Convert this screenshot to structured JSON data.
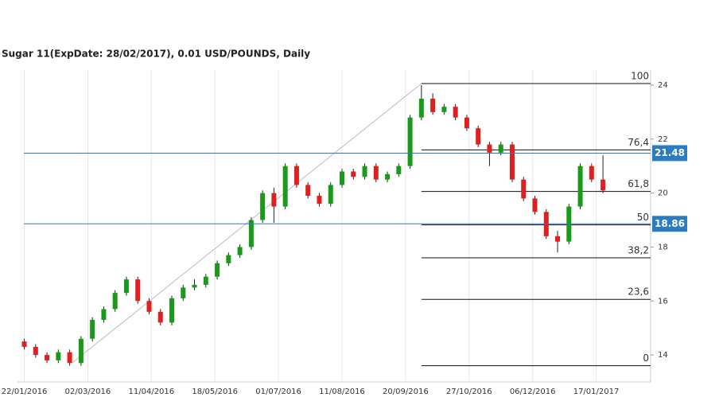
{
  "chart_data": {
    "type": "candlestick",
    "title": "Sugar 11(ExpDate: 28/02/2017), 0.01 USD/POUNDS, Daily",
    "x": [
      0,
      5,
      10,
      15,
      20,
      25,
      30,
      35,
      40,
      45,
      50,
      55,
      60,
      65,
      70,
      75,
      80,
      85,
      90,
      95,
      100,
      105,
      110,
      115,
      120,
      125,
      130,
      135,
      140,
      145,
      150,
      155,
      160,
      165,
      170,
      175,
      180,
      185,
      190,
      195,
      200,
      205,
      210,
      215,
      220,
      225,
      230,
      235,
      240,
      245,
      250,
      255
    ],
    "open": [
      14.5,
      14.3,
      14.0,
      13.8,
      14.1,
      13.7,
      14.6,
      15.3,
      15.7,
      16.3,
      16.8,
      16.0,
      15.6,
      15.2,
      16.1,
      16.5,
      16.6,
      16.9,
      17.4,
      17.7,
      18.0,
      19.0,
      20.0,
      19.5,
      21.0,
      20.3,
      19.9,
      19.6,
      20.3,
      20.8,
      20.6,
      21.0,
      20.5,
      20.7,
      21.0,
      22.8,
      23.5,
      23.0,
      23.2,
      22.8,
      22.4,
      21.8,
      21.5,
      21.8,
      20.5,
      19.8,
      19.3,
      18.4,
      18.2,
      19.5,
      21.0,
      20.5
    ],
    "high": [
      14.6,
      14.4,
      14.1,
      14.2,
      14.2,
      14.7,
      15.4,
      15.8,
      16.4,
      16.9,
      16.9,
      16.1,
      15.7,
      16.2,
      16.6,
      16.8,
      17.0,
      17.5,
      17.8,
      18.1,
      19.1,
      20.1,
      20.2,
      21.1,
      21.1,
      20.4,
      20.0,
      20.4,
      20.9,
      20.9,
      21.1,
      21.1,
      20.8,
      21.1,
      22.9,
      24.0,
      23.7,
      23.3,
      23.3,
      22.9,
      22.5,
      21.9,
      21.9,
      21.9,
      20.6,
      19.9,
      19.4,
      18.6,
      19.6,
      21.1,
      21.1,
      21.4
    ],
    "low": [
      14.2,
      13.9,
      13.7,
      13.7,
      13.6,
      13.6,
      14.5,
      15.2,
      15.6,
      16.2,
      15.9,
      15.5,
      15.1,
      15.1,
      16.0,
      16.4,
      16.5,
      16.8,
      17.3,
      17.6,
      17.9,
      18.9,
      18.9,
      19.4,
      20.2,
      19.8,
      19.5,
      19.5,
      20.2,
      20.5,
      20.5,
      20.4,
      20.4,
      20.6,
      20.9,
      22.7,
      22.9,
      22.9,
      22.7,
      22.3,
      21.7,
      21.0,
      21.4,
      20.4,
      19.7,
      19.2,
      18.3,
      17.8,
      18.1,
      19.4,
      20.4,
      20.0
    ],
    "close": [
      14.3,
      14.0,
      13.8,
      14.1,
      13.7,
      14.6,
      15.3,
      15.7,
      16.3,
      16.8,
      16.0,
      15.6,
      15.2,
      16.1,
      16.5,
      16.6,
      16.9,
      17.4,
      17.7,
      18.0,
      19.0,
      20.0,
      19.5,
      21.0,
      20.3,
      19.9,
      19.6,
      20.3,
      20.8,
      20.6,
      21.0,
      20.5,
      20.7,
      21.0,
      22.8,
      23.5,
      23.0,
      23.2,
      22.8,
      22.4,
      21.8,
      21.5,
      21.8,
      20.5,
      19.8,
      19.3,
      18.4,
      18.2,
      19.5,
      21.0,
      20.5,
      20.1
    ],
    "up_color": "#1a9a1a",
    "down_color": "#e02020",
    "xlim": [
      -3,
      276
    ],
    "xticks": [
      {
        "value": 0,
        "label": "22/01/2016"
      },
      {
        "value": 28,
        "label": "02/03/2016"
      },
      {
        "value": 56,
        "label": "11/04/2016"
      },
      {
        "value": 84,
        "label": "18/05/2016"
      },
      {
        "value": 112,
        "label": "01/07/2016"
      },
      {
        "value": 140,
        "label": "11/08/2016"
      },
      {
        "value": 168,
        "label": "20/09/2016"
      },
      {
        "value": 196,
        "label": "27/10/2016"
      },
      {
        "value": 224,
        "label": "06/12/2016"
      },
      {
        "value": 252,
        "label": "17/01/2017"
      }
    ],
    "ylim": [
      13,
      24.56
    ],
    "yticks": [
      14,
      16,
      18,
      20,
      22,
      24
    ],
    "grid": true,
    "hlines": [
      {
        "value": 21.48,
        "color": "#2b7bc0"
      },
      {
        "value": 18.86,
        "color": "#2b7bc0"
      }
    ],
    "trendline": {
      "x": [
        21,
        175
      ],
      "y": [
        13.7,
        24.06
      ]
    },
    "fib_levels": [
      {
        "value": 24.06,
        "label": "100"
      },
      {
        "value": 21.6,
        "label": "76,4"
      },
      {
        "value": 20.06,
        "label": "61,8"
      },
      {
        "value": 18.82,
        "label": "50"
      },
      {
        "value": 17.6,
        "label": "38,2"
      },
      {
        "value": 16.06,
        "label": "23,6"
      },
      {
        "value": 13.6,
        "label": "0"
      }
    ]
  }
}
